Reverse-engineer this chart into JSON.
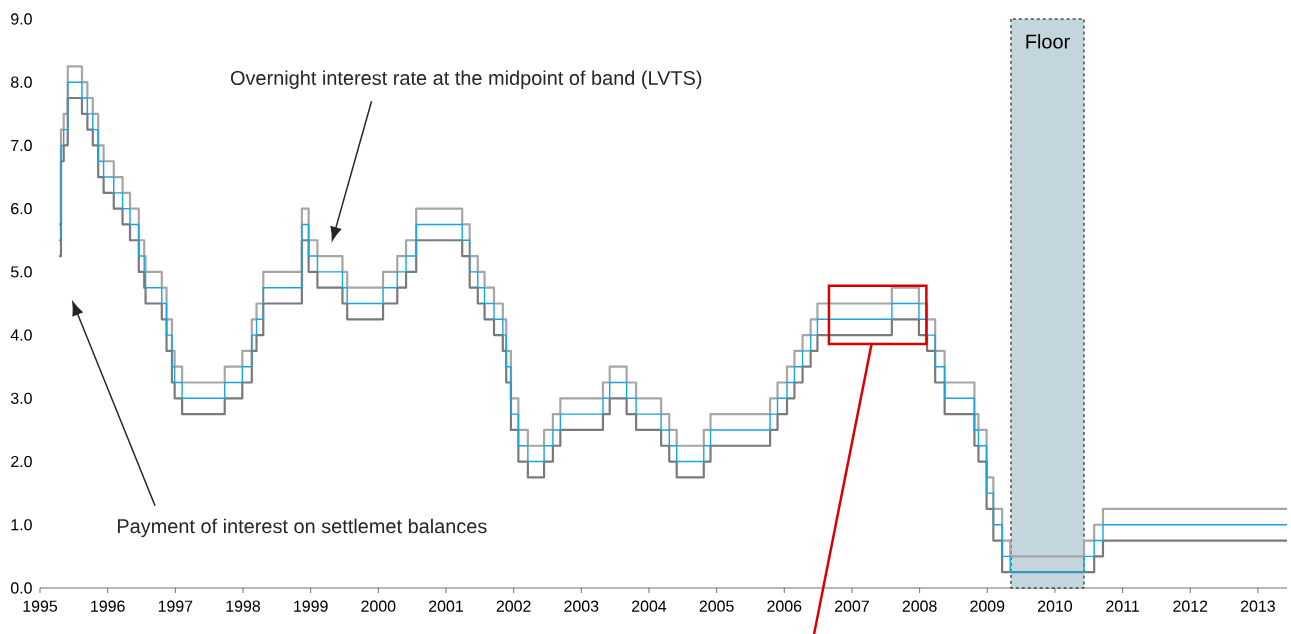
{
  "chart_data": {
    "type": "step",
    "x": [
      1995.28,
      1995.31,
      1995.35,
      1995.41,
      1995.62,
      1995.7,
      1995.78,
      1995.86,
      1995.94,
      1996.09,
      1996.22,
      1996.33,
      1996.46,
      1996.54,
      1996.56,
      1996.8,
      1996.87,
      1996.95,
      1996.99,
      1997.1,
      1997.73,
      1997.99,
      1998.13,
      1998.2,
      1998.3,
      1998.87,
      1998.97,
      1999.1,
      1999.47,
      1999.54,
      2000.07,
      2000.28,
      2000.41,
      2000.56,
      2001.24,
      2001.35,
      2001.47,
      2001.57,
      2001.71,
      2001.84,
      2001.89,
      2001.96,
      2002.07,
      2002.21,
      2002.45,
      2002.58,
      2002.69,
      2003.32,
      2003.42,
      2003.67,
      2003.81,
      2004.18,
      2004.3,
      2004.41,
      2004.81,
      2004.91,
      2005.79,
      2005.9,
      2006.04,
      2006.15,
      2006.27,
      2006.39,
      2006.49,
      2007.59,
      2007.99,
      2008.11,
      2008.23,
      2008.37,
      2008.81,
      2008.87,
      2008.99,
      2009.09,
      2009.22,
      2009.34,
      2010.43,
      2010.58,
      2010.71,
      2013.43
    ],
    "series": [
      {
        "color": "#a6a6a6",
        "values": [
          5.75,
          7.25,
          7.5,
          8.25,
          8.0,
          7.75,
          7.5,
          7.0,
          6.75,
          6.5,
          6.25,
          6.0,
          5.5,
          5.25,
          5.0,
          4.75,
          4.25,
          3.75,
          3.5,
          3.25,
          3.5,
          3.75,
          4.25,
          4.5,
          5.0,
          6.0,
          5.5,
          5.25,
          5.0,
          4.75,
          5.0,
          5.25,
          5.5,
          6.0,
          5.75,
          5.25,
          5.0,
          4.75,
          4.5,
          4.25,
          3.75,
          3.0,
          2.5,
          2.25,
          2.5,
          2.75,
          3.0,
          3.25,
          3.5,
          3.25,
          3.0,
          2.75,
          2.5,
          2.25,
          2.5,
          2.75,
          3.0,
          3.25,
          3.5,
          3.75,
          4.0,
          4.25,
          4.5,
          4.75,
          4.5,
          4.25,
          3.75,
          3.25,
          2.75,
          2.5,
          1.75,
          1.25,
          0.75,
          0.5,
          0.75,
          1.0,
          1.25,
          1.25
        ]
      },
      {
        "color": "#7a7a7a",
        "values": [
          5.25,
          6.75,
          7.0,
          7.75,
          7.5,
          7.25,
          7.0,
          6.5,
          6.25,
          6.0,
          5.75,
          5.5,
          5.0,
          4.75,
          4.5,
          4.25,
          3.75,
          3.25,
          3.0,
          2.75,
          3.0,
          3.25,
          3.75,
          4.0,
          4.5,
          5.5,
          5.0,
          4.75,
          4.5,
          4.25,
          4.5,
          4.75,
          5.0,
          5.5,
          5.25,
          4.75,
          4.5,
          4.25,
          4.0,
          3.75,
          3.25,
          2.5,
          2.0,
          1.75,
          2.0,
          2.25,
          2.5,
          2.75,
          3.0,
          2.75,
          2.5,
          2.25,
          2.0,
          1.75,
          2.0,
          2.25,
          2.5,
          2.75,
          3.0,
          3.25,
          3.5,
          3.75,
          4.0,
          4.25,
          4.0,
          3.75,
          3.25,
          2.75,
          2.25,
          2.0,
          1.25,
          0.75,
          0.25,
          0.25,
          0.25,
          0.5,
          0.75,
          0.75
        ]
      },
      {
        "color": "#1aa3e0",
        "values": [
          5.5,
          7.0,
          7.25,
          8.0,
          7.75,
          7.5,
          7.25,
          6.75,
          6.5,
          6.25,
          6.0,
          5.75,
          5.25,
          5.0,
          4.75,
          4.5,
          4.0,
          3.5,
          3.25,
          3.0,
          3.25,
          3.5,
          4.0,
          4.25,
          4.75,
          5.75,
          5.25,
          5.0,
          4.75,
          4.5,
          4.75,
          5.0,
          5.25,
          5.75,
          5.5,
          5.0,
          4.75,
          4.5,
          4.25,
          4.0,
          3.5,
          2.75,
          2.25,
          2.0,
          2.25,
          2.5,
          2.75,
          3.0,
          3.25,
          3.0,
          2.75,
          2.5,
          2.25,
          2.0,
          2.25,
          2.5,
          2.75,
          3.0,
          3.25,
          3.5,
          3.75,
          4.0,
          4.25,
          4.5,
          4.25,
          4.0,
          3.5,
          3.0,
          2.5,
          2.25,
          1.5,
          1.0,
          0.5,
          0.25,
          0.5,
          0.75,
          1.0,
          1.0
        ]
      }
    ],
    "xlim": [
      1995.0,
      2013.43
    ],
    "ylim": [
      0,
      9
    ],
    "xticks": [
      1995,
      1996,
      1997,
      1998,
      1999,
      2000,
      2001,
      2002,
      2003,
      2004,
      2005,
      2006,
      2007,
      2008,
      2009,
      2010,
      2011,
      2012,
      2013
    ],
    "yticks": [
      {
        "value": 0,
        "label": "0.0"
      },
      {
        "value": 1,
        "label": "1.0"
      },
      {
        "value": 2,
        "label": "2.0"
      },
      {
        "value": 3,
        "label": "3.0"
      },
      {
        "value": 4,
        "label": "4.0"
      },
      {
        "value": 5,
        "label": "5.0"
      },
      {
        "value": 6,
        "label": "6.0"
      },
      {
        "value": 7,
        "label": "7.0"
      },
      {
        "value": 8,
        "label": "8.0"
      },
      {
        "value": 9,
        "label": "9.0"
      }
    ],
    "bands": [
      {
        "axis": "x",
        "from": 2009.35,
        "to": 2010.43,
        "label": "Floor",
        "color": "#c3d6de"
      }
    ],
    "annotations": [
      "Overnight interest rate at the midpoint of band (LVTS)",
      "Payment of interest on settlemet balances"
    ]
  }
}
